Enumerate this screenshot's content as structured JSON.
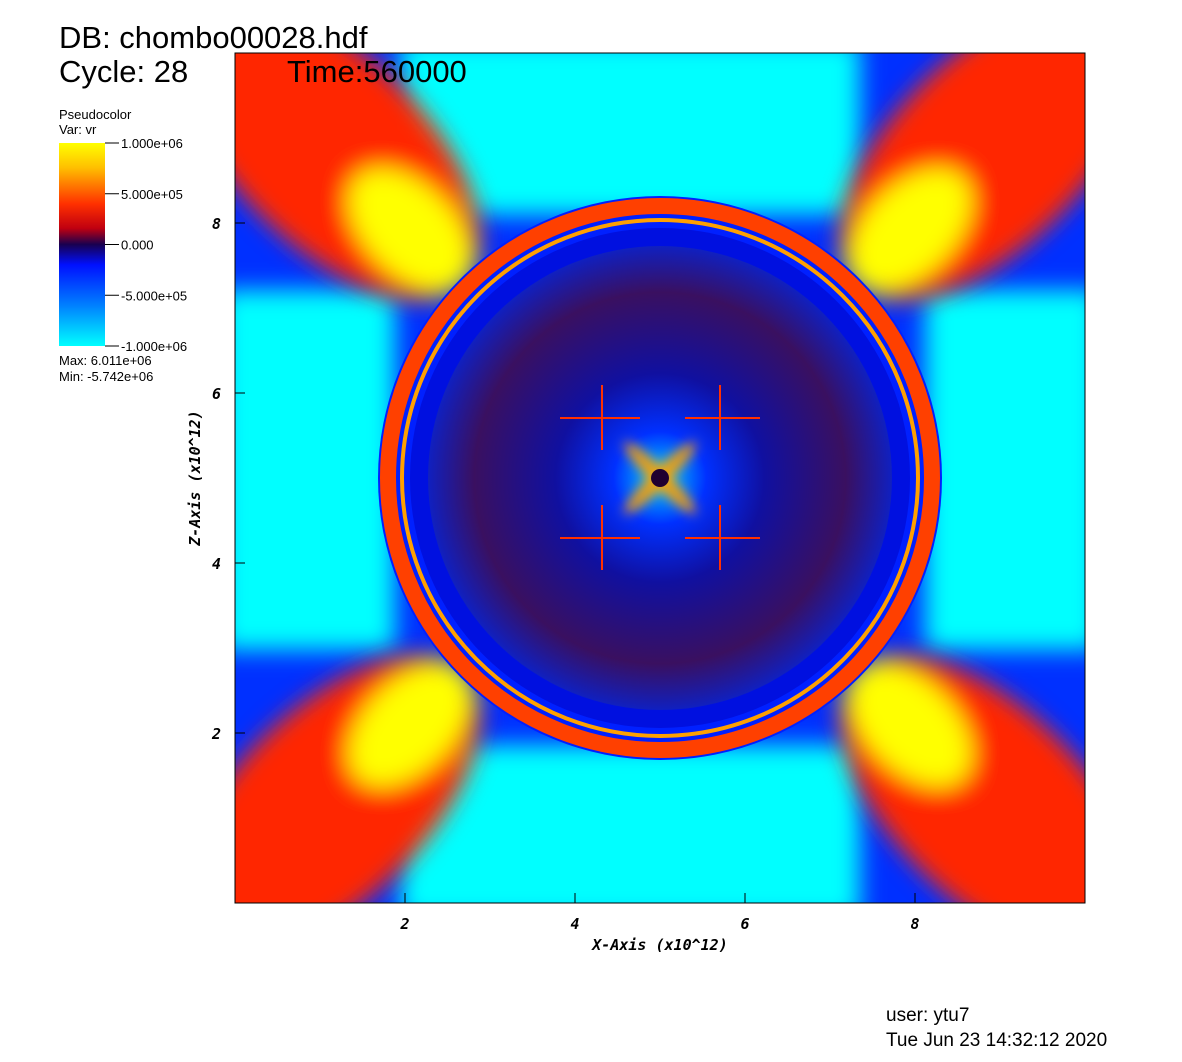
{
  "header": {
    "db": "DB: chombo00028.hdf",
    "cycle": "Cycle: 28",
    "time": "Time:560000"
  },
  "legend": {
    "title": "Pseudocolor",
    "var": "Var: vr",
    "max": "Max: 6.011e+06",
    "min": "Min: -5.742e+06"
  },
  "chart_data": {
    "type": "heatmap",
    "xlabel": "X-Axis (x10^12)",
    "ylabel": "Z-Axis (x10^12)",
    "xlim": [
      0,
      10
    ],
    "ylim": [
      0,
      10
    ],
    "xticks": [
      2,
      4,
      6,
      8
    ],
    "yticks": [
      2,
      4,
      6,
      8
    ],
    "colorbar": {
      "clim": [
        -1000000,
        1000000
      ],
      "ticks": [
        {
          "value": 1000000,
          "label": "1.000e+06"
        },
        {
          "value": 500000,
          "label": "5.000e+05"
        },
        {
          "value": 0,
          "label": "0.000"
        },
        {
          "value": -500000,
          "label": "-5.000e+05"
        },
        {
          "value": -1000000,
          "label": "-1.000e+06"
        }
      ]
    }
  },
  "footer": {
    "user": "user: ytu7",
    "date": "Tue Jun 23 14:32:12 2020"
  }
}
